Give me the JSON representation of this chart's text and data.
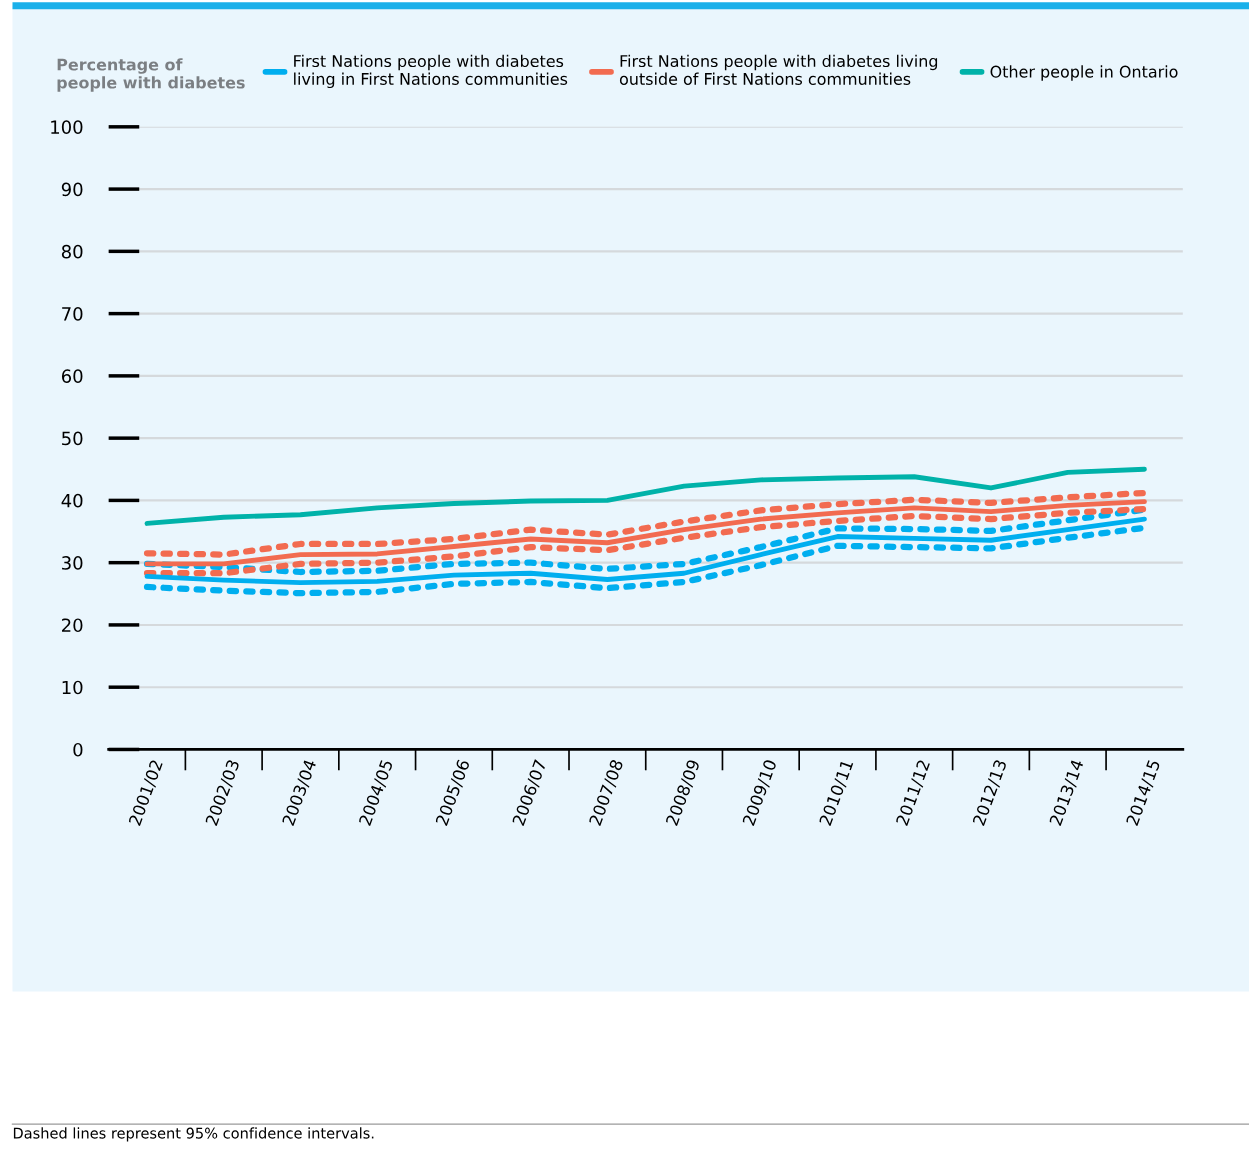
{
  "chart_data": {
    "type": "line",
    "ylabel": "Percentage of\npeople with diabetes",
    "categories": [
      "2001/02",
      "2002/03",
      "2003/04",
      "2004/05",
      "2005/06",
      "2006/07",
      "2007/08",
      "2008/09",
      "2009/10",
      "2010/11",
      "2011/12",
      "2012/13",
      "2013/14",
      "2014/15"
    ],
    "series": [
      {
        "name": "First Nations people with diabetes\nliving in First Nations communities",
        "color": "#00aeef",
        "values": [
          27.8,
          27.2,
          26.8,
          27.0,
          28.0,
          28.3,
          27.3,
          28.3,
          31.3,
          34.2,
          33.9,
          33.6,
          35.3,
          37.0
        ]
      },
      {
        "name": "First Nations people with diabetes living\noutside of First Nations communities",
        "color": "#f26b50",
        "values": [
          29.8,
          29.8,
          31.3,
          31.4,
          32.6,
          33.8,
          33.2,
          35.3,
          37.0,
          38.0,
          38.8,
          38.2,
          39.2,
          39.8
        ]
      },
      {
        "name": "Other people in Ontario",
        "color": "#00b2a9",
        "values": [
          36.3,
          37.3,
          37.7,
          38.8,
          39.5,
          39.9,
          40.0,
          42.3,
          43.3,
          43.6,
          43.8,
          42.0,
          44.5,
          45.0
        ]
      },
      {
        "color": "#00aeef",
        "line_style": "dotted",
        "values": [
          29.8,
          29.3,
          28.5,
          28.7,
          29.8,
          30.0,
          29.0,
          29.8,
          32.5,
          35.5,
          35.4,
          35.1,
          36.8,
          38.5
        ]
      },
      {
        "color": "#00aeef",
        "line_style": "dotted",
        "values": [
          26.1,
          25.5,
          25.1,
          25.3,
          26.6,
          26.9,
          25.9,
          26.9,
          29.6,
          32.7,
          32.5,
          32.3,
          34.0,
          35.6
        ]
      },
      {
        "color": "#f26b50",
        "line_style": "dotted",
        "values": [
          31.5,
          31.3,
          33.0,
          33.0,
          33.8,
          35.3,
          34.5,
          36.6,
          38.4,
          39.4,
          40.1,
          39.6,
          40.5,
          41.2
        ]
      },
      {
        "color": "#f26b50",
        "line_style": "dotted",
        "values": [
          28.3,
          28.3,
          29.8,
          30.0,
          31.0,
          32.5,
          32.0,
          34.0,
          35.7,
          36.7,
          37.5,
          37.0,
          38.0,
          38.6
        ]
      }
    ],
    "ylim": [
      0,
      100
    ],
    "yticks": [
      0,
      10,
      20,
      30,
      40,
      50,
      60,
      70,
      80,
      90,
      100
    ],
    "grid": "y",
    "legend": "top",
    "line_style": "solid",
    "marker": "none",
    "annotations": [
      "Dashed lines represent 95% confidence intervals."
    ]
  }
}
